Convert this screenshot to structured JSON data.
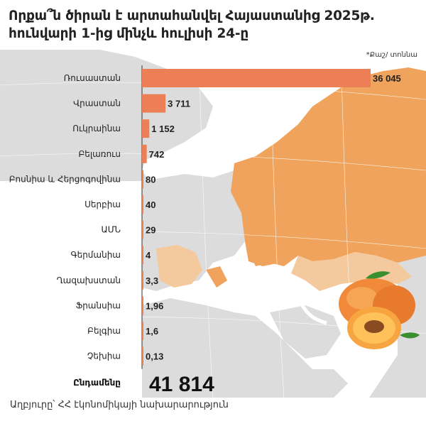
{
  "title": {
    "line1": "Որքա՞ն ծիրան է արտահանվել Հայաստանից 2025թ.",
    "line2": "հունվարի 1-ից մինչև հուլիսի 24-ը"
  },
  "unit_note": "*Քաշ/ տոննա",
  "total": {
    "label": "Ընդամենը",
    "value": "41 814"
  },
  "source": "Աղբյուրը՝ ՀՀ էկոնոմիկայի նախարարություն",
  "colors": {
    "bar": "#ec7f55",
    "map_highlight": "#f0a35c",
    "map_light": "#f4c99d",
    "map_base": "#dcdcdc",
    "map_sea": "#ffffff"
  },
  "chart_data": {
    "type": "bar",
    "orientation": "horizontal",
    "categories": [
      "Ռուսաստան",
      "Վրաստան",
      "Ուկրաինա",
      "Բելառուս",
      "Բոսնիա և Հերցոգովինա",
      "Սերբիա",
      "ԱՄՆ",
      "Գերմանիա",
      "Ղազախստան",
      "Ֆրանսիա",
      "Բելգիա",
      "Չեխիա"
    ],
    "values": [
      36045,
      3711,
      1152,
      742,
      80,
      40,
      29,
      4,
      3.3,
      1.96,
      1.6,
      0.13
    ],
    "value_labels": [
      "36 045",
      "3 711",
      "1 152",
      "742",
      "80",
      "40",
      "29",
      "4",
      "3,3",
      "1,96",
      "1,6",
      "0,13"
    ],
    "xlim": [
      0,
      36045
    ],
    "grid": false,
    "legend": "none"
  }
}
